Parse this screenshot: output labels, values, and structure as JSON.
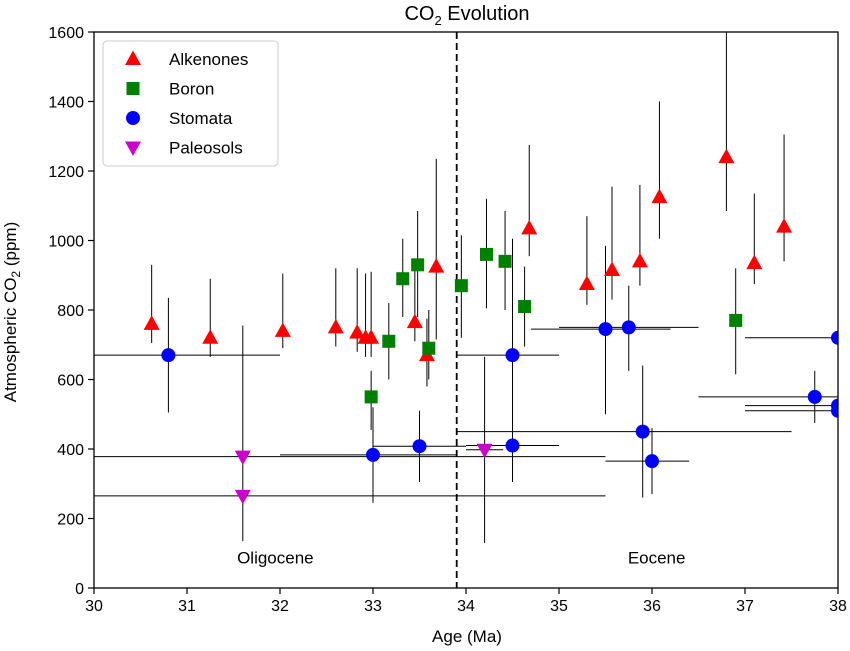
{
  "chart_data": {
    "type": "scatter",
    "title": {
      "main": "CO",
      "sub": "2",
      "rest": " Evolution"
    },
    "xlabel": "Age (Ma)",
    "ylabel": {
      "main": "Atmospheric CO",
      "sub": "2",
      "rest": " (ppm)"
    },
    "xlim": [
      30,
      38
    ],
    "ylim": [
      0,
      1600
    ],
    "xticks": [
      "30",
      "31",
      "32",
      "33",
      "34",
      "35",
      "36",
      "37",
      "38"
    ],
    "yticks": [
      "0",
      "200",
      "400",
      "600",
      "800",
      "1000",
      "1200",
      "1400",
      "1600"
    ],
    "grid": false,
    "legend_position": "top-left",
    "boundary": {
      "x": 33.9,
      "style": "dashed"
    },
    "annotations": [
      {
        "text": "Oligocene",
        "x": 31.95,
        "y": 70
      },
      {
        "text": "Eocene",
        "x": 36.05,
        "y": 70
      }
    ],
    "series": [
      {
        "name": "Alkenones",
        "marker": "triangle-up",
        "color": "#ff0000",
        "points": [
          {
            "x": 30.62,
            "y": 760,
            "ylo": 705,
            "yhi": 930
          },
          {
            "x": 31.25,
            "y": 720,
            "ylo": 665,
            "yhi": 890
          },
          {
            "x": 32.03,
            "y": 740,
            "ylo": 690,
            "yhi": 905
          },
          {
            "x": 32.6,
            "y": 750,
            "ylo": 695,
            "yhi": 920
          },
          {
            "x": 32.83,
            "y": 735,
            "ylo": 680,
            "yhi": 920
          },
          {
            "x": 32.92,
            "y": 720,
            "ylo": 665,
            "yhi": 905
          },
          {
            "x": 32.98,
            "y": 720,
            "ylo": 665,
            "yhi": 910
          },
          {
            "x": 33.45,
            "y": 765,
            "ylo": 710,
            "yhi": 935
          },
          {
            "x": 33.58,
            "y": 670,
            "ylo": 580,
            "yhi": 775
          },
          {
            "x": 33.68,
            "y": 925,
            "ylo": 715,
            "yhi": 1235
          },
          {
            "x": 34.68,
            "y": 1035,
            "ylo": 955,
            "yhi": 1275
          },
          {
            "x": 35.3,
            "y": 875,
            "ylo": 815,
            "yhi": 1070
          },
          {
            "x": 35.57,
            "y": 915,
            "ylo": 830,
            "yhi": 1155
          },
          {
            "x": 35.87,
            "y": 940,
            "ylo": 870,
            "yhi": 1160
          },
          {
            "x": 36.08,
            "y": 1125,
            "ylo": 1005,
            "yhi": 1400
          },
          {
            "x": 36.8,
            "y": 1240,
            "ylo": 1085,
            "yhi": 1600
          },
          {
            "x": 37.1,
            "y": 935,
            "ylo": 875,
            "yhi": 1135
          },
          {
            "x": 37.42,
            "y": 1040,
            "ylo": 940,
            "yhi": 1305
          }
        ]
      },
      {
        "name": "Boron",
        "marker": "square",
        "color": "#008000",
        "points": [
          {
            "x": 32.98,
            "y": 550,
            "ylo": 455,
            "yhi": 625
          },
          {
            "x": 33.17,
            "y": 710,
            "ylo": 600,
            "yhi": 820
          },
          {
            "x": 33.32,
            "y": 890,
            "ylo": 780,
            "yhi": 1005
          },
          {
            "x": 33.48,
            "y": 930,
            "ylo": 780,
            "yhi": 1085
          },
          {
            "x": 33.6,
            "y": 690,
            "ylo": 600,
            "yhi": 800
          },
          {
            "x": 33.95,
            "y": 870,
            "ylo": 720,
            "yhi": 1015
          },
          {
            "x": 34.22,
            "y": 960,
            "ylo": 805,
            "yhi": 1120
          },
          {
            "x": 34.42,
            "y": 940,
            "ylo": 800,
            "yhi": 1085
          },
          {
            "x": 34.63,
            "y": 810,
            "ylo": 695,
            "yhi": 925
          },
          {
            "x": 36.9,
            "y": 770,
            "ylo": 615,
            "yhi": 920
          }
        ]
      },
      {
        "name": "Stomata",
        "marker": "circle",
        "color": "#0000ff",
        "points": [
          {
            "x": 30.8,
            "y": 670,
            "ylo": 505,
            "yhi": 835,
            "xlo": 30.0,
            "xhi": 32.0
          },
          {
            "x": 33.0,
            "y": 383,
            "ylo": 245,
            "yhi": 520,
            "xlo": 32.0,
            "xhi": 33.9
          },
          {
            "x": 33.5,
            "y": 408,
            "ylo": 305,
            "yhi": 510,
            "xlo": 33.0,
            "xhi": 34.0
          },
          {
            "x": 34.5,
            "y": 670,
            "ylo": 330,
            "yhi": 1005,
            "xlo": 33.9,
            "xhi": 35.0
          },
          {
            "x": 34.5,
            "y": 410,
            "ylo": 305,
            "yhi": 515,
            "xlo": 34.0,
            "xhi": 35.0
          },
          {
            "x": 35.5,
            "y": 745,
            "ylo": 500,
            "yhi": 985,
            "xlo": 34.7,
            "xhi": 36.2
          },
          {
            "x": 35.75,
            "y": 750,
            "ylo": 625,
            "yhi": 870,
            "xlo": 35.0,
            "xhi": 36.5
          },
          {
            "x": 35.9,
            "y": 450,
            "ylo": 260,
            "yhi": 640,
            "xlo": 33.9,
            "xhi": 37.5
          },
          {
            "x": 36.0,
            "y": 365,
            "ylo": 270,
            "yhi": 460,
            "xlo": 35.5,
            "xhi": 36.4
          },
          {
            "x": 37.75,
            "y": 550,
            "ylo": 475,
            "yhi": 625,
            "xlo": 36.5,
            "xhi": 38.0
          },
          {
            "x": 38.0,
            "y": 720,
            "ylo": 720,
            "yhi": 720,
            "xlo": 37.0,
            "xhi": 38.0
          },
          {
            "x": 38.0,
            "y": 525,
            "ylo": 525,
            "yhi": 525,
            "xlo": 37.0,
            "xhi": 38.0
          },
          {
            "x": 38.0,
            "y": 510,
            "ylo": 510,
            "yhi": 510,
            "xlo": 37.0,
            "xhi": 38.0
          }
        ]
      },
      {
        "name": "Paleosols",
        "marker": "triangle-down",
        "color": "#cc00cc",
        "points": [
          {
            "x": 31.6,
            "y": 378,
            "ylo": 135,
            "yhi": 755,
            "xlo": 30.0,
            "xhi": 35.5
          },
          {
            "x": 31.6,
            "y": 265,
            "ylo": 265,
            "yhi": 265,
            "xlo": 30.0,
            "xhi": 35.5
          },
          {
            "x": 34.2,
            "y": 398,
            "ylo": 130,
            "yhi": 665,
            "xlo": 34.0,
            "xhi": 34.4
          }
        ]
      }
    ]
  }
}
